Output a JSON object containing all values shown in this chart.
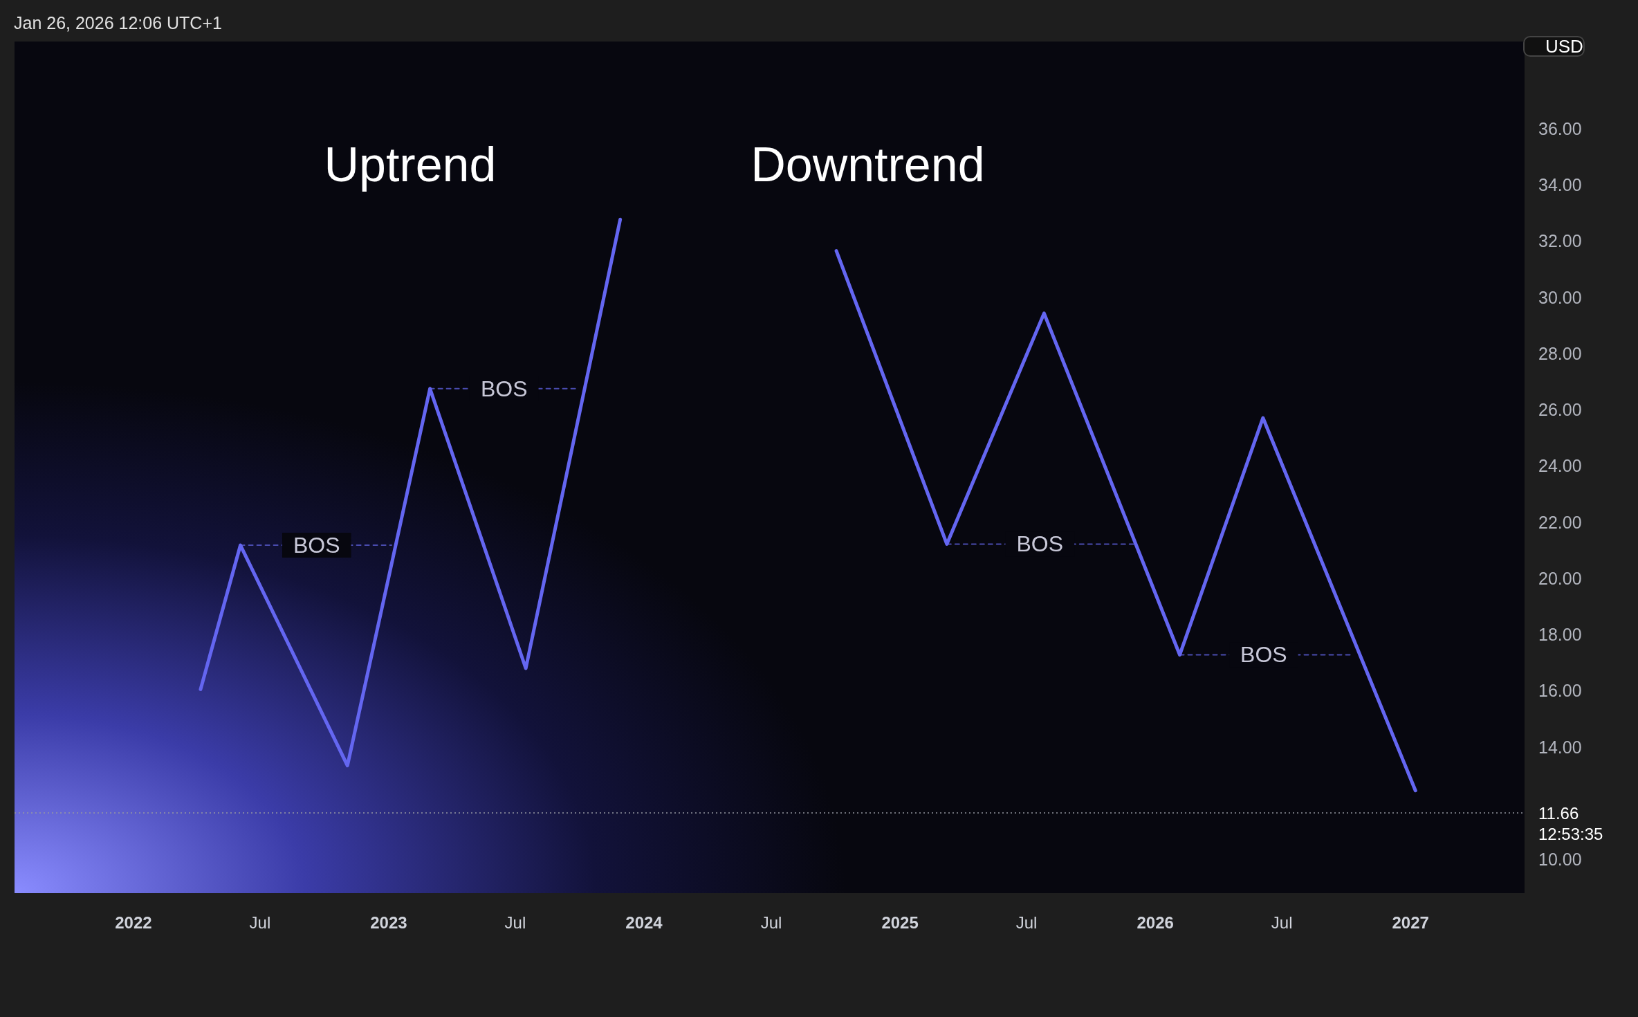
{
  "chart_data": {
    "type": "line",
    "ylabel": "USD",
    "xlim": [
      "2021-07-15",
      "2027-06-13"
    ],
    "xticks": [
      {
        "value": "2022-01-01",
        "label": "2022"
      },
      {
        "value": "2022-07-01",
        "label": "Jul"
      },
      {
        "value": "2023-01-01",
        "label": "2023"
      },
      {
        "value": "2023-07-01",
        "label": "Jul"
      },
      {
        "value": "2024-01-01",
        "label": "2024"
      },
      {
        "value": "2024-07-01",
        "label": "Jul"
      },
      {
        "value": "2025-01-01",
        "label": "2025"
      },
      {
        "value": "2025-07-01",
        "label": "Jul"
      },
      {
        "value": "2026-01-01",
        "label": "2026"
      },
      {
        "value": "2026-07-01",
        "label": "Jul"
      },
      {
        "value": "2027-01-01",
        "label": "2027"
      }
    ],
    "ylim": [
      8.8,
      39.1
    ],
    "yticks": [
      {
        "value": 10,
        "label": "10.00"
      },
      {
        "value": 14,
        "label": "14.00"
      },
      {
        "value": 16,
        "label": "16.00"
      },
      {
        "value": 18,
        "label": "18.00"
      },
      {
        "value": 20,
        "label": "20.00"
      },
      {
        "value": 22,
        "label": "22.00"
      },
      {
        "value": 24,
        "label": "24.00"
      },
      {
        "value": 26,
        "label": "26.00"
      },
      {
        "value": 28,
        "label": "28.00"
      },
      {
        "value": 30,
        "label": "30.00"
      },
      {
        "value": 32,
        "label": "32.00"
      },
      {
        "value": 34,
        "label": "34.00"
      },
      {
        "value": 36,
        "label": "36.00"
      }
    ],
    "marker": "none",
    "series": [
      {
        "color": "#6466f1",
        "line_style": "solid",
        "x": [
          "2022-04-07",
          "2022-06-03",
          "2022-11-03",
          "2023-03-01",
          "2023-07-16",
          "2023-11-28"
        ],
        "values": [
          16.05,
          21.18,
          13.34,
          26.75,
          16.8,
          32.77
        ]
      },
      {
        "color": "#6466f1",
        "line_style": "solid",
        "x": [
          "2024-10-02",
          "2025-03-09",
          "2025-07-26",
          "2026-02-05",
          "2026-06-04",
          "2027-01-08"
        ],
        "values": [
          31.65,
          21.22,
          29.43,
          17.28,
          25.71,
          12.45
        ]
      },
      {
        "color": "#4a4cb0",
        "line_style": "dashed",
        "x": [
          "2022-06-03",
          "2023-01-05"
        ],
        "values": [
          21.18,
          21.18
        ]
      },
      {
        "color": "#4a4cb0",
        "line_style": "dashed",
        "x": [
          "2023-03-01",
          "2023-09-29"
        ],
        "values": [
          26.75,
          26.75
        ]
      },
      {
        "color": "#4a4cb0",
        "line_style": "dashed",
        "x": [
          "2025-03-09",
          "2025-12-01"
        ],
        "values": [
          21.22,
          21.22
        ]
      },
      {
        "color": "#4a4cb0",
        "line_style": "dashed",
        "x": [
          "2026-02-05",
          "2026-10-10"
        ],
        "values": [
          17.28,
          17.28
        ]
      }
    ],
    "ref_lines": [
      {
        "axis": "y",
        "value": 11.66,
        "label": "11.66\n12:53:35",
        "color": "#9598a1",
        "line_style": "dotted"
      }
    ],
    "annotations": [
      "Jan 26, 2026 12:06 UTC+1",
      "Uptrend",
      "Downtrend",
      {
        "text": "BOS",
        "x": "2022-09-20",
        "y": 21.18
      },
      {
        "text": "BOS",
        "x": "2023-06-15",
        "y": 26.75
      },
      {
        "text": "BOS",
        "x": "2025-07-20",
        "y": 21.22
      },
      {
        "text": "BOS",
        "x": "2026-06-05",
        "y": 17.28
      }
    ]
  }
}
